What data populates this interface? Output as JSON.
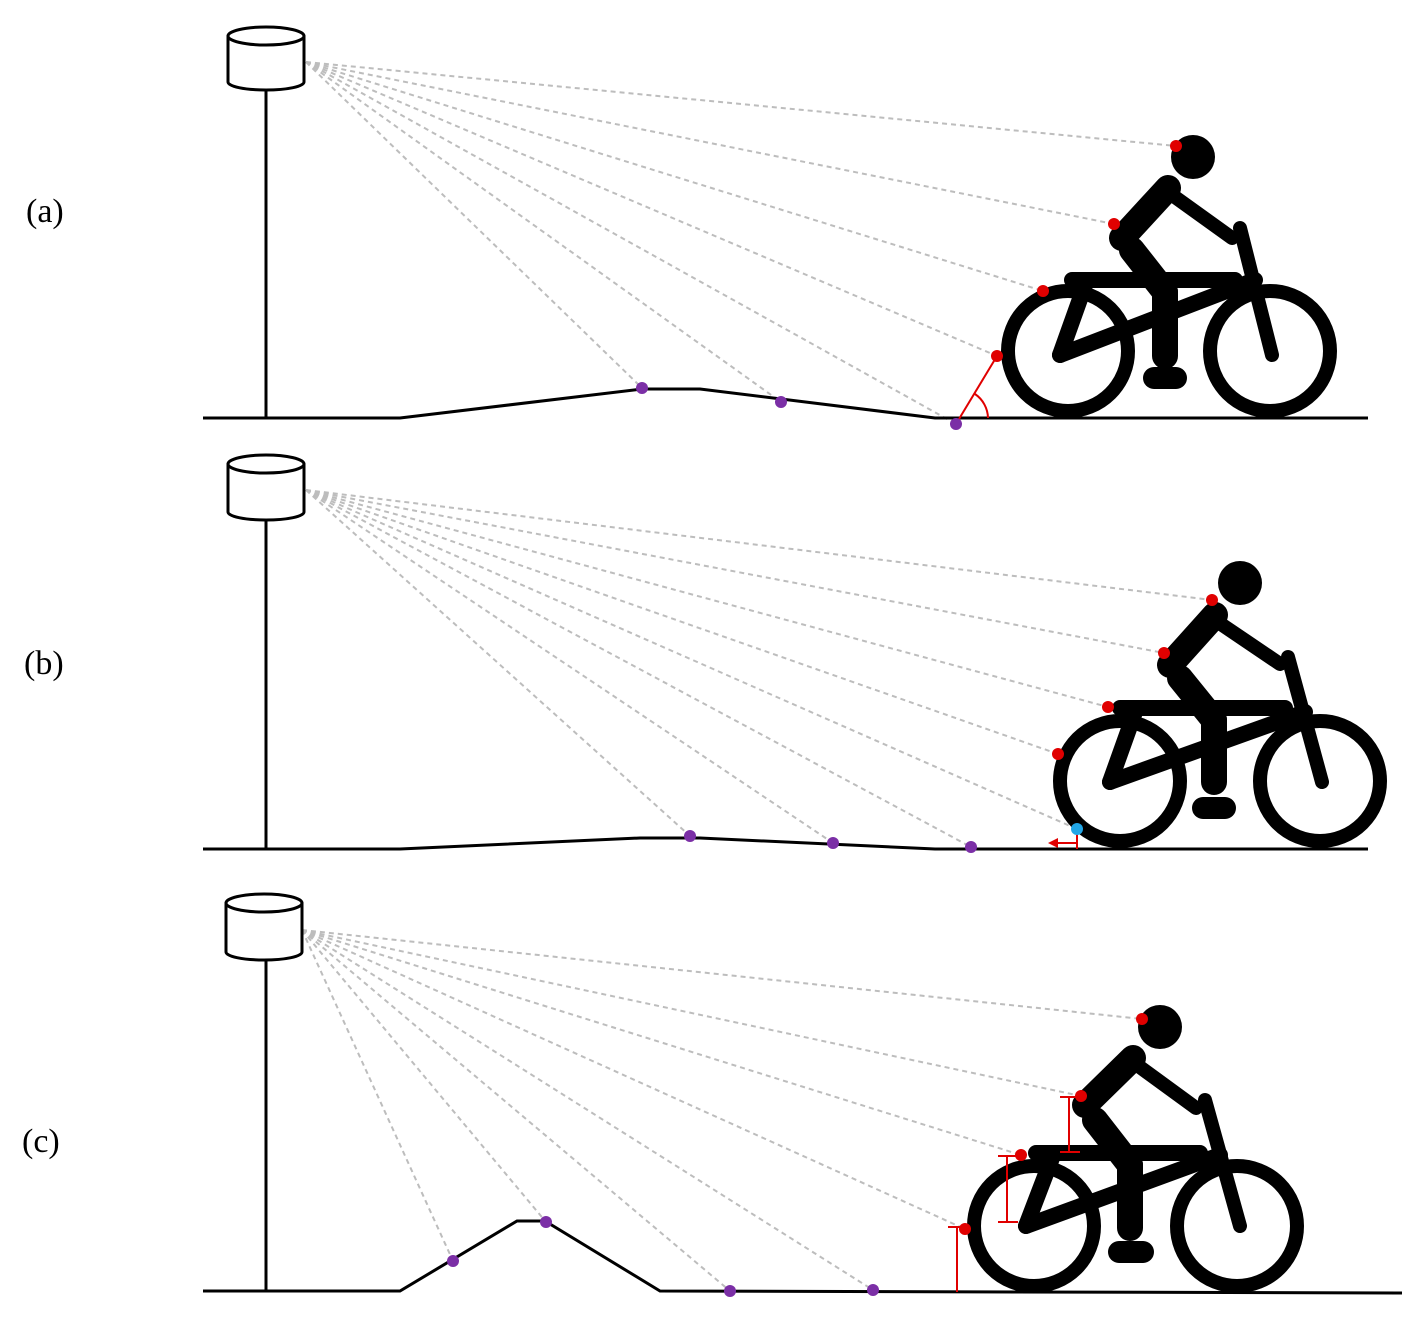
{
  "panels": [
    {
      "label": "(a)",
      "description": "angle"
    },
    {
      "label": "(b)",
      "description": "offset"
    },
    {
      "label": "(c)",
      "description": "height"
    }
  ],
  "colors": {
    "ray": "#bdbdbd",
    "ground_point": "#7b2fa6",
    "body_point": "#e00000",
    "contact_point": "#22a6e6",
    "annotation": "#e00000",
    "figure": "#000000"
  }
}
